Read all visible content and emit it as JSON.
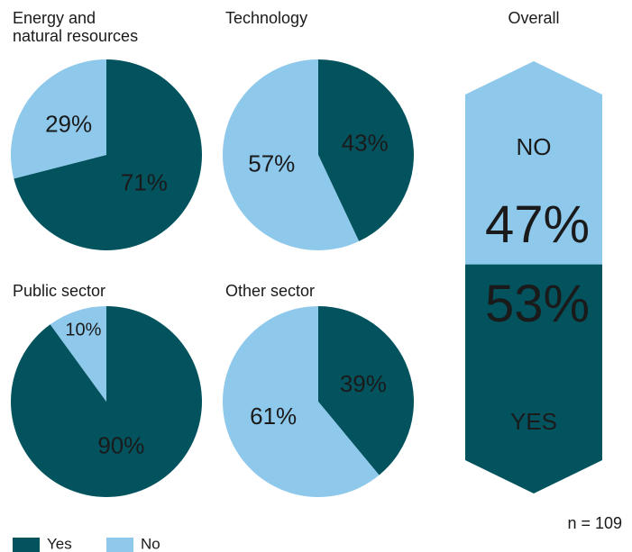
{
  "chart_data": [
    {
      "type": "pie",
      "title": "Energy and\nnatural resources",
      "categories": [
        "Yes",
        "No"
      ],
      "values": [
        71,
        29
      ],
      "value_labels": [
        "71%",
        "29%"
      ],
      "colors": [
        "#03535f",
        "#8ec8eb"
      ]
    },
    {
      "type": "pie",
      "title": "Technology",
      "categories": [
        "Yes",
        "No"
      ],
      "values": [
        43,
        57
      ],
      "value_labels": [
        "43%",
        "57%"
      ],
      "colors": [
        "#03535f",
        "#8ec8eb"
      ]
    },
    {
      "type": "pie",
      "title": "Public sector",
      "categories": [
        "Yes",
        "No"
      ],
      "values": [
        90,
        10
      ],
      "value_labels": [
        "90%",
        "10%"
      ],
      "colors": [
        "#03535f",
        "#8ec8eb"
      ]
    },
    {
      "type": "pie",
      "title": "Other sector",
      "categories": [
        "Yes",
        "No"
      ],
      "values": [
        39,
        61
      ],
      "value_labels": [
        "39%",
        "61%"
      ],
      "colors": [
        "#03535f",
        "#8ec8eb"
      ]
    },
    {
      "type": "arrow",
      "title": "Overall",
      "categories": [
        "NO",
        "YES"
      ],
      "values": [
        47,
        53
      ],
      "value_labels": [
        "47%",
        "53%"
      ],
      "colors": [
        "#8ec8eb",
        "#03535f"
      ]
    }
  ],
  "legend": [
    {
      "name": "Yes",
      "color": "#03535f"
    },
    {
      "name": "No",
      "color": "#8ec8eb"
    }
  ],
  "note": "n = 109"
}
